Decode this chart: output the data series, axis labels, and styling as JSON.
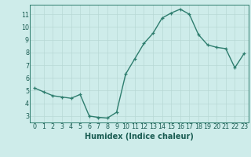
{
  "x": [
    0,
    1,
    2,
    3,
    4,
    5,
    6,
    7,
    8,
    9,
    10,
    11,
    12,
    13,
    14,
    15,
    16,
    17,
    18,
    19,
    20,
    21,
    22,
    23
  ],
  "y": [
    5.2,
    4.9,
    4.6,
    4.5,
    4.4,
    4.7,
    3.0,
    2.9,
    2.85,
    3.3,
    6.3,
    7.5,
    8.7,
    9.5,
    10.7,
    11.1,
    11.4,
    11.0,
    9.4,
    8.6,
    8.4,
    8.3,
    6.8,
    7.9
  ],
  "line_color": "#2e7d6e",
  "marker": "+",
  "markersize": 3,
  "linewidth": 1.0,
  "bg_color": "#ceecea",
  "grid_color": "#b8d8d5",
  "axis_color": "#2e7d6e",
  "xlabel": "Humidex (Indice chaleur)",
  "xlim": [
    -0.5,
    23.5
  ],
  "ylim": [
    2.5,
    11.75
  ],
  "yticks": [
    3,
    4,
    5,
    6,
    7,
    8,
    9,
    10,
    11
  ],
  "xticks": [
    0,
    1,
    2,
    3,
    4,
    5,
    6,
    7,
    8,
    9,
    10,
    11,
    12,
    13,
    14,
    15,
    16,
    17,
    18,
    19,
    20,
    21,
    22,
    23
  ],
  "tick_label_fontsize": 5.8,
  "xlabel_fontsize": 7.0,
  "label_color": "#1a5c52"
}
